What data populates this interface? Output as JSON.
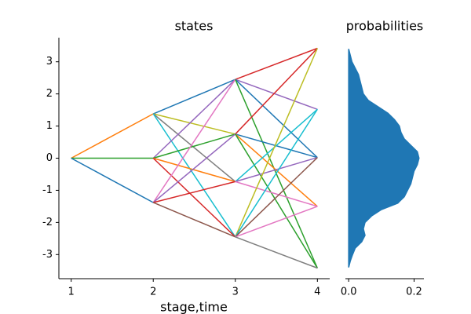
{
  "chart_data": [
    {
      "type": "line",
      "title": "states",
      "xlabel": "stage,time",
      "xlim": [
        0.85,
        4.15
      ],
      "ylim": [
        -3.75,
        3.75
      ],
      "xticks": [
        1,
        2,
        3,
        4
      ],
      "yticks": [
        -3,
        -2,
        -1,
        0,
        1,
        2,
        3
      ],
      "series": [
        {
          "color": "#ff7f0e",
          "x": [
            1,
            2
          ],
          "values": [
            0,
            1.38
          ]
        },
        {
          "color": "#2ca02c",
          "x": [
            1,
            2
          ],
          "values": [
            0,
            0
          ]
        },
        {
          "color": "#1f77b4",
          "x": [
            1,
            2
          ],
          "values": [
            0,
            -1.38
          ]
        },
        {
          "color": "#1f77b4",
          "x": [
            2,
            3
          ],
          "values": [
            1.38,
            2.45
          ]
        },
        {
          "color": "#bcbd22",
          "x": [
            2,
            3
          ],
          "values": [
            1.38,
            0.75
          ]
        },
        {
          "color": "#7f7f7f",
          "x": [
            2,
            3
          ],
          "values": [
            1.38,
            -0.73
          ]
        },
        {
          "color": "#17becf",
          "x": [
            2,
            3
          ],
          "values": [
            1.38,
            -2.45
          ]
        },
        {
          "color": "#9467bd",
          "x": [
            2,
            3
          ],
          "values": [
            0,
            2.45
          ]
        },
        {
          "color": "#2ca02c",
          "x": [
            2,
            3
          ],
          "values": [
            0,
            0.75
          ]
        },
        {
          "color": "#ff7f0e",
          "x": [
            2,
            3
          ],
          "values": [
            0,
            -0.73
          ]
        },
        {
          "color": "#d62728",
          "x": [
            2,
            3
          ],
          "values": [
            0,
            -2.45
          ]
        },
        {
          "color": "#e377c2",
          "x": [
            2,
            3
          ],
          "values": [
            -1.38,
            2.45
          ]
        },
        {
          "color": "#9467bd",
          "x": [
            2,
            3
          ],
          "values": [
            -1.38,
            0.75
          ]
        },
        {
          "color": "#d62728",
          "x": [
            2,
            3
          ],
          "values": [
            -1.38,
            -0.73
          ]
        },
        {
          "color": "#8c564b",
          "x": [
            2,
            3
          ],
          "values": [
            -1.38,
            -2.45
          ]
        },
        {
          "color": "#d62728",
          "x": [
            3,
            4
          ],
          "values": [
            2.45,
            3.42
          ]
        },
        {
          "color": "#9467bd",
          "x": [
            3,
            4
          ],
          "values": [
            2.45,
            1.52
          ]
        },
        {
          "color": "#1f77b4",
          "x": [
            3,
            4
          ],
          "values": [
            2.45,
            0.02
          ]
        },
        {
          "color": "#2ca02c",
          "x": [
            3,
            4
          ],
          "values": [
            2.45,
            -3.42
          ]
        },
        {
          "color": "#d62728",
          "x": [
            3,
            4
          ],
          "values": [
            0.75,
            3.42
          ]
        },
        {
          "color": "#1f77b4",
          "x": [
            3,
            4
          ],
          "values": [
            0.75,
            0.02
          ]
        },
        {
          "color": "#ff7f0e",
          "x": [
            3,
            4
          ],
          "values": [
            0.75,
            -1.5
          ]
        },
        {
          "color": "#2ca02c",
          "x": [
            3,
            4
          ],
          "values": [
            0.75,
            -3.42
          ]
        },
        {
          "color": "#17becf",
          "x": [
            3,
            4
          ],
          "values": [
            -0.73,
            1.52
          ]
        },
        {
          "color": "#9467bd",
          "x": [
            3,
            4
          ],
          "values": [
            -0.73,
            0.02
          ]
        },
        {
          "color": "#e377c2",
          "x": [
            3,
            4
          ],
          "values": [
            -0.73,
            -1.5
          ]
        },
        {
          "color": "#bcbd22",
          "x": [
            3,
            4
          ],
          "values": [
            -2.45,
            3.42
          ]
        },
        {
          "color": "#17becf",
          "x": [
            3,
            4
          ],
          "values": [
            -2.45,
            1.52
          ]
        },
        {
          "color": "#8c564b",
          "x": [
            3,
            4
          ],
          "values": [
            -2.45,
            0.02
          ]
        },
        {
          "color": "#e377c2",
          "x": [
            3,
            4
          ],
          "values": [
            -2.45,
            -1.5
          ]
        },
        {
          "color": "#7f7f7f",
          "x": [
            3,
            4
          ],
          "values": [
            -2.45,
            -3.42
          ]
        }
      ]
    },
    {
      "type": "area",
      "title": "probabilities",
      "orientation": "horizontal",
      "color": "#1f77b4",
      "xlim": [
        -0.01,
        0.23
      ],
      "ylim": [
        -3.75,
        3.75
      ],
      "xticks": [
        {
          "value": 0,
          "label": "0.0"
        },
        0.2
      ],
      "x": [
        -3.4,
        -3.2,
        -3.0,
        -2.8,
        -2.6,
        -2.4,
        -2.2,
        -2.0,
        -1.8,
        -1.6,
        -1.4,
        -1.2,
        -1.0,
        -0.8,
        -0.6,
        -0.4,
        -0.2,
        0,
        0.2,
        0.4,
        0.6,
        0.8,
        1.0,
        1.2,
        1.4,
        1.6,
        1.8,
        2.0,
        2.2,
        2.4,
        2.6,
        2.8,
        3.0,
        3.2,
        3.4
      ],
      "values": [
        0,
        0.005,
        0.012,
        0.02,
        0.04,
        0.05,
        0.045,
        0.05,
        0.07,
        0.1,
        0.15,
        0.17,
        0.18,
        0.19,
        0.195,
        0.2,
        0.21,
        0.215,
        0.21,
        0.19,
        0.17,
        0.16,
        0.155,
        0.14,
        0.12,
        0.09,
        0.06,
        0.045,
        0.04,
        0.035,
        0.03,
        0.02,
        0.01,
        0.005,
        0
      ]
    }
  ]
}
